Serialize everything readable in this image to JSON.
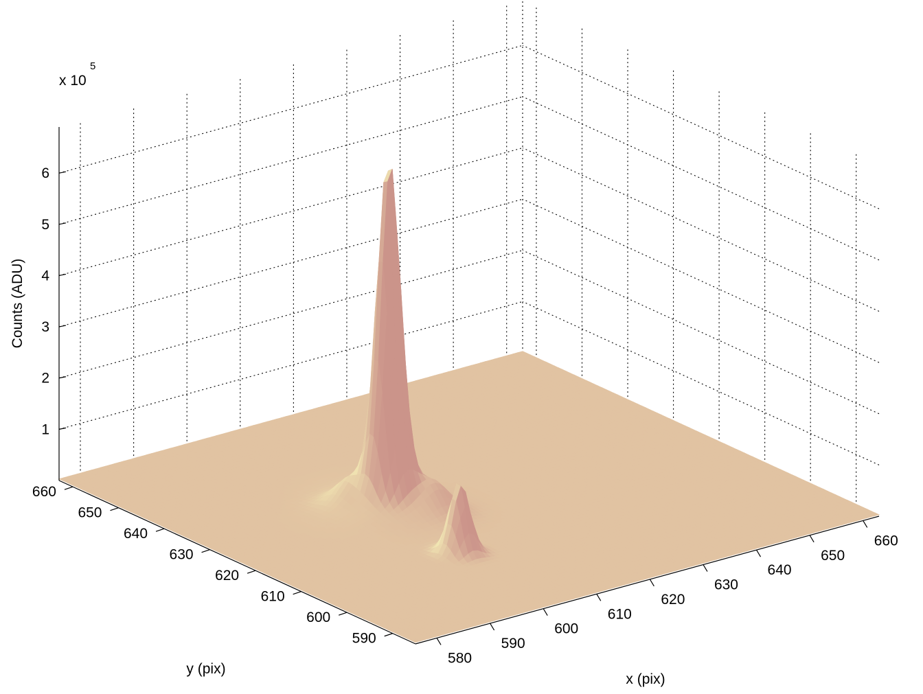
{
  "chart_data": {
    "type": "surface",
    "z_multiplier": "x 10",
    "z_multiplier_exponent": "5",
    "xlabel": "x (pix)",
    "ylabel": "y (pix)",
    "zlabel": "Counts (ADU)",
    "x_ticks": [
      "580",
      "590",
      "600",
      "610",
      "620",
      "630",
      "640",
      "650",
      "660"
    ],
    "y_ticks": [
      "590",
      "600",
      "610",
      "620",
      "630",
      "640",
      "650",
      "660"
    ],
    "z_ticks": [
      "1",
      "2",
      "3",
      "4",
      "5",
      "6"
    ],
    "xlim": [
      576,
      663
    ],
    "ylim": [
      585,
      663
    ],
    "zlim": [
      0,
      690000
    ],
    "grid": true,
    "surface_color_low": "#c98f88",
    "surface_color_high": "#f4ecb6",
    "background_level": 3000,
    "peaks": [
      {
        "x": 607,
        "y": 627,
        "height": 650000,
        "sigma": 1.7
      },
      {
        "x": 607,
        "y": 627,
        "height": 40000,
        "sigma": 5.5
      },
      {
        "x": 603,
        "y": 631,
        "height": 35000,
        "sigma": 2.2
      },
      {
        "x": 611,
        "y": 622,
        "height": 45000,
        "sigma": 2.4
      },
      {
        "x": 604,
        "y": 608,
        "height": 140000,
        "sigma": 1.5
      }
    ]
  }
}
